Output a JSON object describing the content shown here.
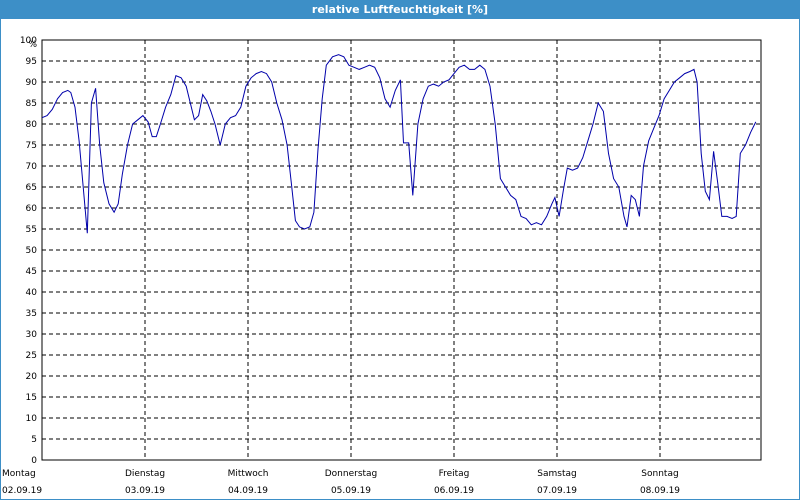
{
  "window": {
    "title": "relative Luftfeuchtigkeit [%]"
  },
  "colors": {
    "titlebar": "#3d8fc7",
    "line": "#0000aa",
    "grid": "#000000"
  },
  "chart_data": {
    "type": "line",
    "title": "relative Luftfeuchtigkeit [%]",
    "ylabel": "%",
    "xlabel": "",
    "ylim": [
      0,
      100
    ],
    "yticks": [
      0,
      5,
      10,
      15,
      20,
      25,
      30,
      35,
      40,
      45,
      50,
      55,
      60,
      65,
      70,
      75,
      80,
      85,
      90,
      95,
      100
    ],
    "xlim": [
      0,
      7
    ],
    "grid": true,
    "legend": "none",
    "x_ticks": [
      {
        "x": 0,
        "day": "Montag",
        "date": "02.09.19"
      },
      {
        "x": 1,
        "day": "Dienstag",
        "date": "03.09.19"
      },
      {
        "x": 2,
        "day": "Mittwoch",
        "date": "04.09.19"
      },
      {
        "x": 3,
        "day": "Donnerstag",
        "date": "05.09.19"
      },
      {
        "x": 4,
        "day": "Freitag",
        "date": "06.09.19"
      },
      {
        "x": 5,
        "day": "Samstag",
        "date": "07.09.19"
      },
      {
        "x": 6,
        "day": "Sonntag",
        "date": "08.09.19"
      }
    ],
    "series": [
      {
        "name": "",
        "points": [
          [
            0.0,
            81.5
          ],
          [
            0.05,
            82
          ],
          [
            0.1,
            83.5
          ],
          [
            0.15,
            86
          ],
          [
            0.2,
            87.5
          ],
          [
            0.25,
            88
          ],
          [
            0.28,
            87.5
          ],
          [
            0.32,
            84
          ],
          [
            0.36,
            76
          ],
          [
            0.4,
            65
          ],
          [
            0.44,
            54
          ],
          [
            0.48,
            85
          ],
          [
            0.52,
            88.5
          ],
          [
            0.56,
            75
          ],
          [
            0.6,
            66
          ],
          [
            0.65,
            61
          ],
          [
            0.7,
            59
          ],
          [
            0.74,
            61
          ],
          [
            0.78,
            68
          ],
          [
            0.83,
            75
          ],
          [
            0.88,
            80
          ],
          [
            0.93,
            81
          ],
          [
            0.98,
            82
          ],
          [
            1.03,
            80.5
          ],
          [
            1.07,
            77
          ],
          [
            1.11,
            77
          ],
          [
            1.15,
            80
          ],
          [
            1.2,
            84
          ],
          [
            1.25,
            87
          ],
          [
            1.3,
            91.5
          ],
          [
            1.35,
            91
          ],
          [
            1.4,
            89
          ],
          [
            1.44,
            85
          ],
          [
            1.48,
            81
          ],
          [
            1.52,
            82
          ],
          [
            1.56,
            87
          ],
          [
            1.6,
            85.5
          ],
          [
            1.64,
            83
          ],
          [
            1.68,
            80
          ],
          [
            1.73,
            75
          ],
          [
            1.78,
            80
          ],
          [
            1.83,
            81.5
          ],
          [
            1.88,
            82
          ],
          [
            1.93,
            84
          ],
          [
            1.98,
            89
          ],
          [
            2.03,
            91
          ],
          [
            2.08,
            92
          ],
          [
            2.13,
            92.5
          ],
          [
            2.18,
            92
          ],
          [
            2.23,
            90
          ],
          [
            2.28,
            85
          ],
          [
            2.33,
            81
          ],
          [
            2.38,
            75
          ],
          [
            2.42,
            66
          ],
          [
            2.46,
            57
          ],
          [
            2.5,
            55.5
          ],
          [
            2.55,
            55
          ],
          [
            2.6,
            55.5
          ],
          [
            2.64,
            59
          ],
          [
            2.68,
            74
          ],
          [
            2.72,
            86
          ],
          [
            2.76,
            94
          ],
          [
            2.82,
            96
          ],
          [
            2.88,
            96.5
          ],
          [
            2.93,
            96
          ],
          [
            2.98,
            94
          ],
          [
            3.03,
            93.5
          ],
          [
            3.08,
            93
          ],
          [
            3.13,
            93.5
          ],
          [
            3.18,
            94
          ],
          [
            3.23,
            93.5
          ],
          [
            3.28,
            91
          ],
          [
            3.33,
            86
          ],
          [
            3.38,
            84
          ],
          [
            3.43,
            88
          ],
          [
            3.48,
            90.5
          ],
          [
            3.51,
            75.5
          ],
          [
            3.56,
            75.5
          ],
          [
            3.6,
            63
          ],
          [
            3.65,
            80
          ],
          [
            3.7,
            86
          ],
          [
            3.75,
            89
          ],
          [
            3.8,
            89.5
          ],
          [
            3.85,
            89
          ],
          [
            3.9,
            90
          ],
          [
            3.95,
            90.5
          ],
          [
            4.0,
            92
          ],
          [
            4.05,
            93.5
          ],
          [
            4.1,
            94
          ],
          [
            4.15,
            93
          ],
          [
            4.2,
            93
          ],
          [
            4.25,
            94
          ],
          [
            4.3,
            93
          ],
          [
            4.35,
            89
          ],
          [
            4.4,
            80
          ],
          [
            4.45,
            67
          ],
          [
            4.5,
            65
          ],
          [
            4.55,
            63
          ],
          [
            4.6,
            62
          ],
          [
            4.65,
            58
          ],
          [
            4.7,
            57.5
          ],
          [
            4.75,
            56
          ],
          [
            4.8,
            56.5
          ],
          [
            4.85,
            56
          ],
          [
            4.9,
            58
          ],
          [
            4.95,
            61
          ],
          [
            4.98,
            62.5
          ],
          [
            5.02,
            58
          ],
          [
            5.06,
            64
          ],
          [
            5.1,
            69.5
          ],
          [
            5.15,
            69
          ],
          [
            5.2,
            69.5
          ],
          [
            5.25,
            72
          ],
          [
            5.3,
            76
          ],
          [
            5.35,
            80
          ],
          [
            5.4,
            85
          ],
          [
            5.45,
            83
          ],
          [
            5.5,
            73
          ],
          [
            5.55,
            67
          ],
          [
            5.6,
            65
          ],
          [
            5.65,
            58
          ],
          [
            5.68,
            55.5
          ],
          [
            5.72,
            63
          ],
          [
            5.76,
            62
          ],
          [
            5.8,
            58
          ],
          [
            5.84,
            70
          ],
          [
            5.89,
            76
          ],
          [
            5.94,
            79
          ],
          [
            5.99,
            82
          ],
          [
            6.04,
            86
          ],
          [
            6.09,
            88
          ],
          [
            6.14,
            90
          ],
          [
            6.19,
            91
          ],
          [
            6.24,
            92
          ],
          [
            6.29,
            92.5
          ],
          [
            6.33,
            93
          ],
          [
            6.36,
            90
          ],
          [
            6.4,
            73
          ],
          [
            6.44,
            64
          ],
          [
            6.48,
            62
          ],
          [
            6.52,
            73.5
          ],
          [
            6.56,
            66
          ],
          [
            6.6,
            58
          ],
          [
            6.65,
            58
          ],
          [
            6.7,
            57.5
          ],
          [
            6.74,
            58
          ],
          [
            6.78,
            73
          ],
          [
            6.83,
            75
          ],
          [
            6.88,
            78
          ],
          [
            6.93,
            80.5
          ]
        ]
      }
    ]
  }
}
